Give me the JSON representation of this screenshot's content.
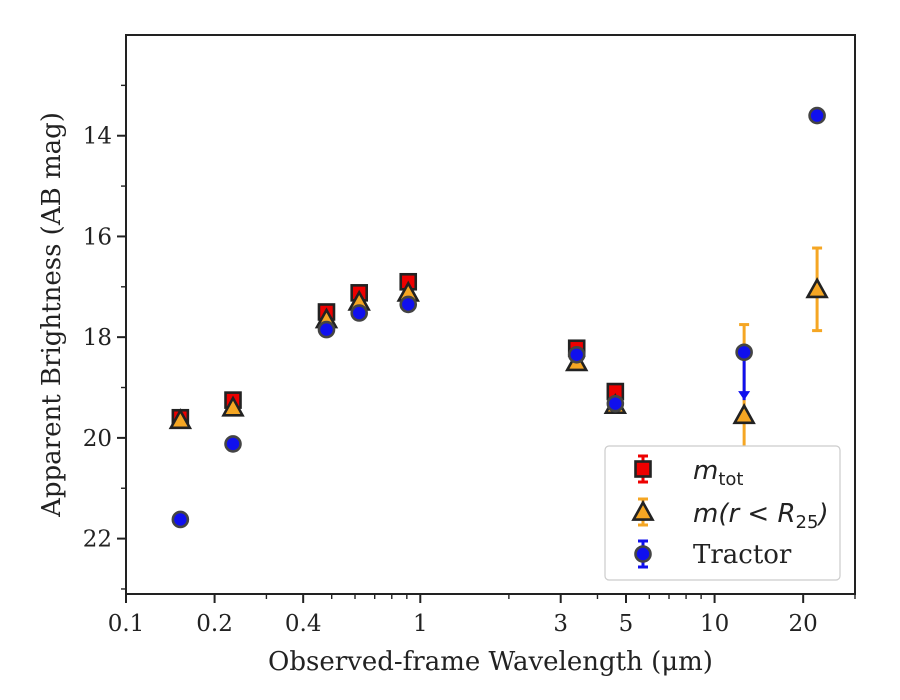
{
  "chart_data": {
    "type": "scatter",
    "xlabel": "Observed-frame Wavelength (μm)",
    "ylabel": "Apparent Brightness (AB mag)",
    "x_scale": "log",
    "xlim": [
      0.1,
      30
    ],
    "ylim": [
      23.1,
      12.0
    ],
    "y_inverted": true,
    "grid": false,
    "legend_position": "bottom-right",
    "x_ticks": [
      {
        "value": 0.1,
        "label": "0.1"
      },
      {
        "value": 0.2,
        "label": "0.2"
      },
      {
        "value": 0.4,
        "label": "0.4"
      },
      {
        "value": 1,
        "label": "1"
      },
      {
        "value": 3,
        "label": "3"
      },
      {
        "value": 5,
        "label": "5"
      },
      {
        "value": 10,
        "label": "10"
      },
      {
        "value": 20,
        "label": "20"
      }
    ],
    "y_ticks": [
      {
        "value": 14,
        "label": "14"
      },
      {
        "value": 16,
        "label": "16"
      },
      {
        "value": 18,
        "label": "18"
      },
      {
        "value": 20,
        "label": "20"
      },
      {
        "value": 22,
        "label": "22"
      }
    ],
    "series": [
      {
        "name": "m_tot",
        "marker": "square",
        "color": "#ee0000",
        "edge_color": "#222222",
        "points": [
          {
            "x": 0.153,
            "y": 19.6,
            "err": 0.05
          },
          {
            "x": 0.231,
            "y": 19.25,
            "err": 0.05
          },
          {
            "x": 0.48,
            "y": 17.5,
            "err": 0.03
          },
          {
            "x": 0.62,
            "y": 17.12,
            "err": 0.03
          },
          {
            "x": 0.91,
            "y": 16.9,
            "err": 0.03
          },
          {
            "x": 3.4,
            "y": 18.22,
            "err": 0.05
          },
          {
            "x": 4.6,
            "y": 19.08,
            "err": 0.05
          }
        ]
      },
      {
        "name": "m(r < R25)",
        "marker": "triangle",
        "color": "#f5a623",
        "edge_color": "#222222",
        "points": [
          {
            "x": 0.153,
            "y": 19.65,
            "err": 0.05
          },
          {
            "x": 0.231,
            "y": 19.4,
            "err": 0.05
          },
          {
            "x": 0.48,
            "y": 17.65,
            "err": 0.03
          },
          {
            "x": 0.62,
            "y": 17.3,
            "err": 0.03
          },
          {
            "x": 0.91,
            "y": 17.12,
            "err": 0.03
          },
          {
            "x": 3.4,
            "y": 18.5,
            "err": 0.05
          },
          {
            "x": 4.6,
            "y": 19.35,
            "err": 0.05
          },
          {
            "x": 12.6,
            "y": 19.55,
            "err": 1.8
          },
          {
            "x": 22.3,
            "y": 17.05,
            "err": 0.82
          }
        ]
      },
      {
        "name": "Tractor",
        "marker": "circle",
        "color": "#1010ee",
        "edge_color": "#444444",
        "points": [
          {
            "x": 0.153,
            "y": 21.62,
            "err": 0.05
          },
          {
            "x": 0.231,
            "y": 20.12,
            "err": 0.05
          },
          {
            "x": 0.48,
            "y": 17.85,
            "err": 0.03
          },
          {
            "x": 0.62,
            "y": 17.52,
            "err": 0.03
          },
          {
            "x": 0.91,
            "y": 17.35,
            "err": 0.03
          },
          {
            "x": 3.4,
            "y": 18.35,
            "err": 0.05
          },
          {
            "x": 4.6,
            "y": 19.32,
            "err": 0.05
          },
          {
            "x": 12.6,
            "y": 18.3,
            "upper_limit_arrow_to": 19.25
          },
          {
            "x": 22.3,
            "y": 13.6,
            "err": 0.05
          }
        ]
      }
    ],
    "legend": [
      {
        "series": "m_tot",
        "base": "m",
        "sub": "tot",
        "suffix": ""
      },
      {
        "series": "m(r < R25)",
        "base": "m(r < R",
        "sub": "25",
        "suffix": ")"
      },
      {
        "series": "Tractor",
        "text": "Tractor"
      }
    ]
  }
}
